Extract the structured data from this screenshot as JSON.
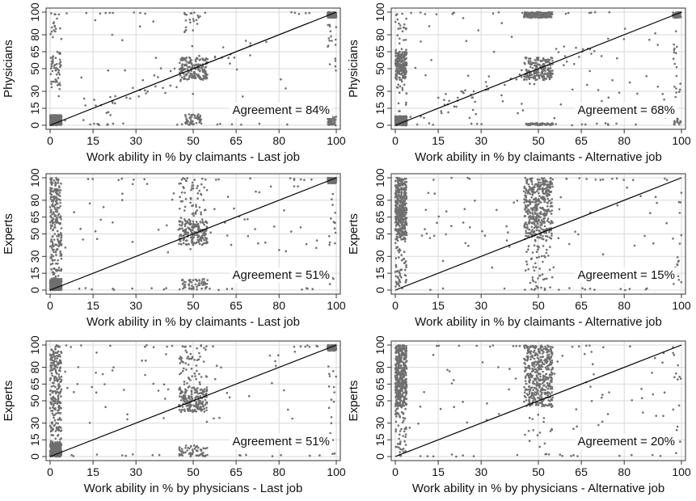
{
  "figure": {
    "colors": {
      "points": "#6f6f6f",
      "grid": "#d9d9d9",
      "line": "#000000",
      "frame": "#333333"
    }
  },
  "chart_data": [
    {
      "type": "scatter",
      "xlabel": "Work ability in % by claimants - Last job",
      "ylabel": "Physicians",
      "annotation": "Agreement = 84%",
      "xticks": [
        0,
        15,
        30,
        50,
        65,
        80,
        100
      ],
      "yticks": [
        0,
        15,
        30,
        50,
        65,
        80,
        100
      ],
      "xlim": [
        0,
        100
      ],
      "ylim": [
        0,
        100
      ],
      "grid": true,
      "reference_line": [
        [
          0,
          0
        ],
        [
          100,
          100
        ]
      ],
      "point_groups": [
        {
          "x": [
            0,
            4
          ],
          "y": [
            0,
            9
          ],
          "density": "very high"
        },
        {
          "x": [
            45,
            55
          ],
          "y": [
            40,
            60
          ],
          "density": "high"
        },
        {
          "x": [
            0,
            4
          ],
          "y": [
            25,
            65
          ],
          "density": "medium"
        },
        {
          "x": [
            0,
            4
          ],
          "y": [
            75,
            100
          ],
          "density": "low"
        },
        {
          "x": [
            47,
            53
          ],
          "y": [
            0,
            10
          ],
          "density": "medium"
        },
        {
          "x": [
            47,
            53
          ],
          "y": [
            80,
            100
          ],
          "density": "low"
        },
        {
          "x": [
            97,
            100
          ],
          "y": [
            95,
            100
          ],
          "density": "high"
        },
        {
          "x": [
            97,
            100
          ],
          "y": [
            0,
            8
          ],
          "density": "medium"
        },
        {
          "x": [
            97,
            100
          ],
          "y": [
            30,
            90
          ],
          "density": "low"
        },
        {
          "x": [
            5,
            95
          ],
          "y": [
            0,
            2
          ],
          "density": "low"
        },
        {
          "x": [
            5,
            95
          ],
          "y": [
            98,
            100
          ],
          "density": "low"
        },
        {
          "x": [
            10,
            70
          ],
          "y": [
            10,
            70
          ],
          "density": "medium",
          "along_diagonal": true
        },
        {
          "x": [
            5,
            95
          ],
          "y": [
            5,
            95
          ],
          "density": "low"
        }
      ]
    },
    {
      "type": "scatter",
      "xlabel": "Work ability in % by claimants - Alternative job",
      "ylabel": "Physicians",
      "annotation": "Agreement = 68%",
      "xticks": [
        0,
        15,
        30,
        50,
        65,
        80,
        100
      ],
      "yticks": [
        0,
        15,
        30,
        50,
        65,
        80,
        100
      ],
      "xlim": [
        0,
        100
      ],
      "ylim": [
        0,
        100
      ],
      "grid": true,
      "reference_line": [
        [
          0,
          0
        ],
        [
          100,
          100
        ]
      ],
      "point_groups": [
        {
          "x": [
            0,
            4
          ],
          "y": [
            0,
            8
          ],
          "density": "very high"
        },
        {
          "x": [
            0,
            4
          ],
          "y": [
            40,
            65
          ],
          "density": "high"
        },
        {
          "x": [
            0,
            4
          ],
          "y": [
            10,
            100
          ],
          "density": "medium"
        },
        {
          "x": [
            45,
            55
          ],
          "y": [
            40,
            60
          ],
          "density": "high"
        },
        {
          "x": [
            45,
            55
          ],
          "y": [
            95,
            100
          ],
          "density": "high"
        },
        {
          "x": [
            45,
            55
          ],
          "y": [
            0,
            2
          ],
          "density": "medium"
        },
        {
          "x": [
            97,
            100
          ],
          "y": [
            95,
            100
          ],
          "density": "medium"
        },
        {
          "x": [
            97,
            100
          ],
          "y": [
            0,
            8
          ],
          "density": "low"
        },
        {
          "x": [
            97,
            100
          ],
          "y": [
            20,
            90
          ],
          "density": "low"
        },
        {
          "x": [
            5,
            95
          ],
          "y": [
            0,
            2
          ],
          "density": "low"
        },
        {
          "x": [
            5,
            95
          ],
          "y": [
            98,
            100
          ],
          "density": "low"
        },
        {
          "x": [
            10,
            70
          ],
          "y": [
            10,
            70
          ],
          "density": "medium",
          "along_diagonal": true
        },
        {
          "x": [
            5,
            95
          ],
          "y": [
            5,
            95
          ],
          "density": "medium"
        }
      ]
    },
    {
      "type": "scatter",
      "xlabel": "Work ability in % by claimants - Last job",
      "ylabel": "Experts",
      "annotation": "Agreement = 51%",
      "xticks": [
        0,
        15,
        30,
        50,
        65,
        80,
        100
      ],
      "yticks": [
        0,
        15,
        30,
        50,
        65,
        80,
        100
      ],
      "xlim": [
        0,
        100
      ],
      "ylim": [
        0,
        100
      ],
      "grid": true,
      "reference_line": [
        [
          0,
          0
        ],
        [
          100,
          100
        ]
      ],
      "point_groups": [
        {
          "x": [
            0,
            4
          ],
          "y": [
            0,
            10
          ],
          "density": "very high"
        },
        {
          "x": [
            0,
            4
          ],
          "y": [
            40,
            100
          ],
          "density": "high"
        },
        {
          "x": [
            0,
            4
          ],
          "y": [
            10,
            40
          ],
          "density": "medium"
        },
        {
          "x": [
            45,
            55
          ],
          "y": [
            40,
            62
          ],
          "density": "high"
        },
        {
          "x": [
            45,
            55
          ],
          "y": [
            62,
            100
          ],
          "density": "medium"
        },
        {
          "x": [
            45,
            55
          ],
          "y": [
            0,
            10
          ],
          "density": "medium"
        },
        {
          "x": [
            97,
            100
          ],
          "y": [
            95,
            100
          ],
          "density": "high"
        },
        {
          "x": [
            97,
            100
          ],
          "y": [
            0,
            90
          ],
          "density": "low"
        },
        {
          "x": [
            5,
            95
          ],
          "y": [
            98,
            100
          ],
          "density": "low"
        },
        {
          "x": [
            5,
            95
          ],
          "y": [
            0,
            2
          ],
          "density": "low"
        },
        {
          "x": [
            5,
            95
          ],
          "y": [
            30,
            95
          ],
          "density": "medium"
        }
      ]
    },
    {
      "type": "scatter",
      "xlabel": "Work ability in % by claimants - Alternative job",
      "ylabel": "Experts",
      "annotation": "Agreement = 15%",
      "xticks": [
        0,
        15,
        30,
        50,
        65,
        80,
        100
      ],
      "yticks": [
        0,
        15,
        30,
        50,
        65,
        80,
        100
      ],
      "xlim": [
        0,
        100
      ],
      "ylim": [
        0,
        100
      ],
      "grid": true,
      "reference_line": [
        [
          0,
          0
        ],
        [
          100,
          100
        ]
      ],
      "point_groups": [
        {
          "x": [
            0,
            4
          ],
          "y": [
            45,
            100
          ],
          "density": "very high"
        },
        {
          "x": [
            0,
            4
          ],
          "y": [
            0,
            45
          ],
          "density": "medium"
        },
        {
          "x": [
            45,
            55
          ],
          "y": [
            45,
            100
          ],
          "density": "very high"
        },
        {
          "x": [
            45,
            55
          ],
          "y": [
            0,
            45
          ],
          "density": "medium"
        },
        {
          "x": [
            97,
            100
          ],
          "y": [
            0,
            100
          ],
          "density": "low"
        },
        {
          "x": [
            5,
            95
          ],
          "y": [
            98,
            100
          ],
          "density": "low"
        },
        {
          "x": [
            5,
            95
          ],
          "y": [
            20,
            95
          ],
          "density": "medium"
        },
        {
          "x": [
            5,
            95
          ],
          "y": [
            0,
            2
          ],
          "density": "low"
        }
      ]
    },
    {
      "type": "scatter",
      "xlabel": "Work ability in % by physicians - Last job",
      "ylabel": "Experts",
      "annotation": "Agreement = 51%",
      "xticks": [
        0,
        15,
        30,
        50,
        65,
        80,
        100
      ],
      "yticks": [
        0,
        15,
        30,
        50,
        65,
        80,
        100
      ],
      "xlim": [
        0,
        100
      ],
      "ylim": [
        0,
        100
      ],
      "grid": true,
      "reference_line": [
        [
          0,
          0
        ],
        [
          100,
          100
        ]
      ],
      "point_groups": [
        {
          "x": [
            0,
            4
          ],
          "y": [
            0,
            12
          ],
          "density": "very high"
        },
        {
          "x": [
            0,
            4
          ],
          "y": [
            40,
            100
          ],
          "density": "high"
        },
        {
          "x": [
            0,
            4
          ],
          "y": [
            12,
            40
          ],
          "density": "medium"
        },
        {
          "x": [
            45,
            55
          ],
          "y": [
            40,
            62
          ],
          "density": "high"
        },
        {
          "x": [
            45,
            55
          ],
          "y": [
            62,
            100
          ],
          "density": "medium"
        },
        {
          "x": [
            45,
            55
          ],
          "y": [
            0,
            10
          ],
          "density": "medium"
        },
        {
          "x": [
            97,
            100
          ],
          "y": [
            95,
            100
          ],
          "density": "high"
        },
        {
          "x": [
            97,
            100
          ],
          "y": [
            0,
            90
          ],
          "density": "low"
        },
        {
          "x": [
            5,
            95
          ],
          "y": [
            98,
            100
          ],
          "density": "low"
        },
        {
          "x": [
            5,
            95
          ],
          "y": [
            0,
            2
          ],
          "density": "low"
        },
        {
          "x": [
            5,
            95
          ],
          "y": [
            30,
            95
          ],
          "density": "medium"
        }
      ]
    },
    {
      "type": "scatter",
      "xlabel": "Work ability in % by physicians - Alternative job",
      "ylabel": "Experts",
      "annotation": "Agreement = 20%",
      "xticks": [
        0,
        15,
        30,
        50,
        65,
        80,
        100
      ],
      "yticks": [
        0,
        15,
        30,
        50,
        65,
        80,
        100
      ],
      "xlim": [
        0,
        100
      ],
      "ylim": [
        0,
        100
      ],
      "grid": true,
      "reference_line": [
        [
          0,
          0
        ],
        [
          100,
          100
        ]
      ],
      "point_groups": [
        {
          "x": [
            0,
            4
          ],
          "y": [
            45,
            100
          ],
          "density": "very high"
        },
        {
          "x": [
            0,
            4
          ],
          "y": [
            0,
            45
          ],
          "density": "medium"
        },
        {
          "x": [
            45,
            55
          ],
          "y": [
            45,
            100
          ],
          "density": "very high"
        },
        {
          "x": [
            45,
            55
          ],
          "y": [
            0,
            45
          ],
          "density": "low"
        },
        {
          "x": [
            97,
            100
          ],
          "y": [
            0,
            100
          ],
          "density": "low"
        },
        {
          "x": [
            5,
            95
          ],
          "y": [
            98,
            100
          ],
          "density": "low"
        },
        {
          "x": [
            5,
            95
          ],
          "y": [
            20,
            95
          ],
          "density": "medium"
        },
        {
          "x": [
            5,
            95
          ],
          "y": [
            0,
            2
          ],
          "density": "low"
        }
      ]
    }
  ]
}
